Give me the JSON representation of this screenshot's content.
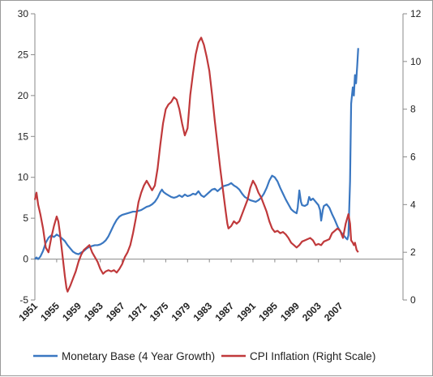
{
  "chart_data": {
    "type": "line",
    "left_axis": {
      "ylim": [
        -5,
        30
      ],
      "ticks": [
        "-5",
        "0",
        "5",
        "10",
        "15",
        "20",
        "25",
        "30"
      ]
    },
    "right_axis": {
      "ylim": [
        0,
        12
      ],
      "ticks": [
        "0",
        "2",
        "4",
        "6",
        "8",
        "10",
        "12"
      ]
    },
    "x_range": [
      1951,
      2010
    ],
    "x_ticks": [
      "1951",
      "1955",
      "1959",
      "1963",
      "1967",
      "1971",
      "1975",
      "1979",
      "1983",
      "1987",
      "1991",
      "1995",
      "1999",
      "2003",
      "2007"
    ],
    "legend_position": "bottom",
    "grid": false,
    "series": [
      {
        "name": "Monetary Base (4 Year Growth)",
        "axis": "left",
        "color": "#3a77c1",
        "points": [
          [
            1951.0,
            0.0
          ],
          [
            1951.3,
            0.2
          ],
          [
            1951.6,
            0.0
          ],
          [
            1952.0,
            0.3
          ],
          [
            1952.5,
            1.0
          ],
          [
            1953.0,
            2.0
          ],
          [
            1953.5,
            2.6
          ],
          [
            1954.0,
            2.9
          ],
          [
            1954.5,
            2.7
          ],
          [
            1955.0,
            3.0
          ],
          [
            1955.5,
            2.8
          ],
          [
            1956.0,
            2.5
          ],
          [
            1956.5,
            2.2
          ],
          [
            1957.0,
            1.7
          ],
          [
            1957.5,
            1.3
          ],
          [
            1958.0,
            0.9
          ],
          [
            1958.5,
            0.7
          ],
          [
            1959.0,
            0.6
          ],
          [
            1959.5,
            0.8
          ],
          [
            1960.0,
            1.0
          ],
          [
            1960.5,
            1.3
          ],
          [
            1961.0,
            1.5
          ],
          [
            1961.5,
            1.6
          ],
          [
            1962.0,
            1.7
          ],
          [
            1962.5,
            1.7
          ],
          [
            1963.0,
            1.8
          ],
          [
            1963.5,
            2.0
          ],
          [
            1964.0,
            2.3
          ],
          [
            1964.5,
            2.8
          ],
          [
            1965.0,
            3.5
          ],
          [
            1965.5,
            4.2
          ],
          [
            1966.0,
            4.8
          ],
          [
            1966.5,
            5.2
          ],
          [
            1967.0,
            5.4
          ],
          [
            1967.5,
            5.5
          ],
          [
            1968.0,
            5.6
          ],
          [
            1968.5,
            5.7
          ],
          [
            1969.0,
            5.8
          ],
          [
            1969.5,
            5.8
          ],
          [
            1970.0,
            5.9
          ],
          [
            1970.5,
            6.0
          ],
          [
            1971.0,
            6.2
          ],
          [
            1971.5,
            6.4
          ],
          [
            1972.0,
            6.5
          ],
          [
            1972.5,
            6.7
          ],
          [
            1973.0,
            7.0
          ],
          [
            1973.5,
            7.5
          ],
          [
            1974.0,
            8.2
          ],
          [
            1974.3,
            8.5
          ],
          [
            1974.6,
            8.2
          ],
          [
            1975.0,
            8.0
          ],
          [
            1975.5,
            7.8
          ],
          [
            1976.0,
            7.6
          ],
          [
            1976.5,
            7.5
          ],
          [
            1977.0,
            7.6
          ],
          [
            1977.5,
            7.8
          ],
          [
            1978.0,
            7.6
          ],
          [
            1978.5,
            7.9
          ],
          [
            1979.0,
            7.7
          ],
          [
            1979.5,
            7.8
          ],
          [
            1980.0,
            8.0
          ],
          [
            1980.5,
            7.9
          ],
          [
            1981.0,
            8.3
          ],
          [
            1981.5,
            7.8
          ],
          [
            1982.0,
            7.6
          ],
          [
            1982.5,
            7.9
          ],
          [
            1983.0,
            8.2
          ],
          [
            1983.5,
            8.5
          ],
          [
            1984.0,
            8.6
          ],
          [
            1984.5,
            8.3
          ],
          [
            1985.0,
            8.6
          ],
          [
            1985.5,
            8.9
          ],
          [
            1986.0,
            9.0
          ],
          [
            1986.5,
            9.1
          ],
          [
            1987.0,
            9.3
          ],
          [
            1987.5,
            9.0
          ],
          [
            1988.0,
            8.8
          ],
          [
            1988.5,
            8.5
          ],
          [
            1989.0,
            8.0
          ],
          [
            1989.5,
            7.6
          ],
          [
            1990.0,
            7.4
          ],
          [
            1990.5,
            7.2
          ],
          [
            1991.0,
            7.1
          ],
          [
            1991.5,
            7.0
          ],
          [
            1992.0,
            7.2
          ],
          [
            1992.5,
            7.5
          ],
          [
            1993.0,
            8.0
          ],
          [
            1993.5,
            8.7
          ],
          [
            1994.0,
            9.6
          ],
          [
            1994.5,
            10.2
          ],
          [
            1995.0,
            10.0
          ],
          [
            1995.5,
            9.5
          ],
          [
            1996.0,
            8.7
          ],
          [
            1996.5,
            8.0
          ],
          [
            1997.0,
            7.3
          ],
          [
            1997.5,
            6.7
          ],
          [
            1998.0,
            6.1
          ],
          [
            1998.5,
            5.8
          ],
          [
            1999.0,
            5.6
          ],
          [
            1999.2,
            6.3
          ],
          [
            1999.5,
            8.4
          ],
          [
            1999.8,
            7.0
          ],
          [
            2000.0,
            6.6
          ],
          [
            2000.5,
            6.5
          ],
          [
            2001.0,
            6.7
          ],
          [
            2001.3,
            7.6
          ],
          [
            2001.6,
            7.2
          ],
          [
            2002.0,
            7.4
          ],
          [
            2002.5,
            7.0
          ],
          [
            2003.0,
            6.6
          ],
          [
            2003.3,
            6.0
          ],
          [
            2003.5,
            4.7
          ],
          [
            2003.8,
            6.0
          ],
          [
            2004.0,
            6.5
          ],
          [
            2004.5,
            6.7
          ],
          [
            2005.0,
            6.3
          ],
          [
            2005.5,
            5.5
          ],
          [
            2006.0,
            4.8
          ],
          [
            2006.5,
            4.0
          ],
          [
            2007.0,
            3.4
          ],
          [
            2007.5,
            3.0
          ],
          [
            2008.0,
            2.6
          ],
          [
            2008.3,
            2.4
          ],
          [
            2008.5,
            2.9
          ],
          [
            2008.8,
            9.5
          ],
          [
            2009.0,
            19.0
          ],
          [
            2009.3,
            21.0
          ],
          [
            2009.5,
            20.0
          ],
          [
            2009.7,
            22.5
          ],
          [
            2009.9,
            21.5
          ],
          [
            2010.1,
            23.5
          ],
          [
            2010.3,
            25.8
          ]
        ]
      },
      {
        "name": "CPI Inflation (Right Scale)",
        "axis": "right",
        "color": "#c0393b",
        "points": [
          [
            1951.0,
            4.2
          ],
          [
            1951.3,
            4.5
          ],
          [
            1951.6,
            4.0
          ],
          [
            1952.0,
            3.6
          ],
          [
            1952.5,
            3.0
          ],
          [
            1953.0,
            2.2
          ],
          [
            1953.5,
            2.0
          ],
          [
            1954.0,
            2.6
          ],
          [
            1954.5,
            3.1
          ],
          [
            1955.0,
            3.5
          ],
          [
            1955.3,
            3.3
          ],
          [
            1955.6,
            2.8
          ],
          [
            1956.0,
            2.0
          ],
          [
            1956.5,
            1.0
          ],
          [
            1956.8,
            0.5
          ],
          [
            1957.0,
            0.35
          ],
          [
            1957.5,
            0.6
          ],
          [
            1958.0,
            0.9
          ],
          [
            1958.5,
            1.2
          ],
          [
            1959.0,
            1.6
          ],
          [
            1959.5,
            1.9
          ],
          [
            1960.0,
            2.1
          ],
          [
            1960.5,
            2.2
          ],
          [
            1961.0,
            2.3
          ],
          [
            1961.5,
            2.0
          ],
          [
            1962.0,
            1.8
          ],
          [
            1962.5,
            1.6
          ],
          [
            1963.0,
            1.3
          ],
          [
            1963.5,
            1.1
          ],
          [
            1964.0,
            1.2
          ],
          [
            1964.5,
            1.25
          ],
          [
            1965.0,
            1.2
          ],
          [
            1965.5,
            1.25
          ],
          [
            1966.0,
            1.15
          ],
          [
            1966.5,
            1.3
          ],
          [
            1967.0,
            1.5
          ],
          [
            1967.5,
            1.8
          ],
          [
            1968.0,
            2.0
          ],
          [
            1968.5,
            2.3
          ],
          [
            1969.0,
            2.8
          ],
          [
            1969.5,
            3.4
          ],
          [
            1970.0,
            4.1
          ],
          [
            1970.5,
            4.5
          ],
          [
            1971.0,
            4.8
          ],
          [
            1971.5,
            5.0
          ],
          [
            1972.0,
            4.8
          ],
          [
            1972.5,
            4.6
          ],
          [
            1973.0,
            4.8
          ],
          [
            1973.5,
            5.5
          ],
          [
            1974.0,
            6.5
          ],
          [
            1974.5,
            7.4
          ],
          [
            1975.0,
            8.0
          ],
          [
            1975.5,
            8.2
          ],
          [
            1976.0,
            8.3
          ],
          [
            1976.5,
            8.5
          ],
          [
            1977.0,
            8.4
          ],
          [
            1977.5,
            8.0
          ],
          [
            1978.0,
            7.4
          ],
          [
            1978.5,
            6.9
          ],
          [
            1979.0,
            7.2
          ],
          [
            1979.5,
            8.6
          ],
          [
            1980.0,
            9.5
          ],
          [
            1980.5,
            10.3
          ],
          [
            1981.0,
            10.8
          ],
          [
            1981.5,
            11.0
          ],
          [
            1982.0,
            10.7
          ],
          [
            1982.5,
            10.2
          ],
          [
            1983.0,
            9.6
          ],
          [
            1983.5,
            8.6
          ],
          [
            1984.0,
            7.5
          ],
          [
            1984.5,
            6.5
          ],
          [
            1985.0,
            5.5
          ],
          [
            1985.5,
            4.6
          ],
          [
            1986.0,
            3.7
          ],
          [
            1986.3,
            3.2
          ],
          [
            1986.5,
            3.0
          ],
          [
            1987.0,
            3.1
          ],
          [
            1987.5,
            3.3
          ],
          [
            1988.0,
            3.2
          ],
          [
            1988.5,
            3.3
          ],
          [
            1989.0,
            3.6
          ],
          [
            1989.5,
            3.9
          ],
          [
            1990.0,
            4.2
          ],
          [
            1990.5,
            4.7
          ],
          [
            1991.0,
            5.0
          ],
          [
            1991.5,
            4.8
          ],
          [
            1992.0,
            4.5
          ],
          [
            1992.5,
            4.3
          ],
          [
            1993.0,
            4.0
          ],
          [
            1993.5,
            3.7
          ],
          [
            1994.0,
            3.3
          ],
          [
            1994.5,
            3.0
          ],
          [
            1995.0,
            2.85
          ],
          [
            1995.5,
            2.9
          ],
          [
            1996.0,
            2.8
          ],
          [
            1996.5,
            2.85
          ],
          [
            1997.0,
            2.75
          ],
          [
            1997.5,
            2.6
          ],
          [
            1998.0,
            2.4
          ],
          [
            1998.5,
            2.3
          ],
          [
            1999.0,
            2.2
          ],
          [
            1999.5,
            2.3
          ],
          [
            2000.0,
            2.45
          ],
          [
            2000.5,
            2.5
          ],
          [
            2001.0,
            2.55
          ],
          [
            2001.5,
            2.6
          ],
          [
            2002.0,
            2.5
          ],
          [
            2002.5,
            2.3
          ],
          [
            2003.0,
            2.35
          ],
          [
            2003.5,
            2.3
          ],
          [
            2004.0,
            2.45
          ],
          [
            2004.5,
            2.5
          ],
          [
            2005.0,
            2.55
          ],
          [
            2005.5,
            2.8
          ],
          [
            2006.0,
            2.9
          ],
          [
            2006.5,
            3.0
          ],
          [
            2007.0,
            2.9
          ],
          [
            2007.5,
            2.6
          ],
          [
            2008.0,
            3.2
          ],
          [
            2008.5,
            3.6
          ],
          [
            2008.8,
            3.2
          ],
          [
            2009.0,
            2.5
          ],
          [
            2009.3,
            2.4
          ],
          [
            2009.5,
            2.3
          ],
          [
            2009.7,
            2.4
          ],
          [
            2010.0,
            2.1
          ],
          [
            2010.3,
            2.0
          ]
        ]
      }
    ]
  },
  "legend": {
    "items": [
      {
        "label": "Monetary Base (4 Year Growth)",
        "color": "#3a77c1"
      },
      {
        "label": "CPI Inflation (Right Scale)",
        "color": "#c0393b"
      }
    ]
  }
}
